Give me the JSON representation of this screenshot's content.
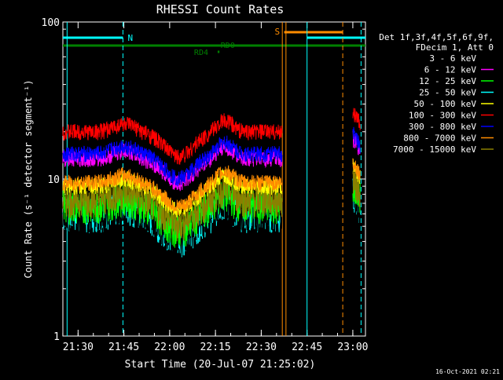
{
  "chart_data": {
    "type": "line",
    "title": "RHESSI Count Rates",
    "xlabel": "Start Time (20-Jul-07 21:25:02)",
    "ylabel": "Count Rate (s⁻¹ detector segment⁻¹)",
    "footer_date": "16-Oct-2021 02:21",
    "yscale": "log",
    "ylim": [
      1,
      100
    ],
    "xlim_minutes": [
      21.417,
      22.069
    ],
    "y_tick_labels": [
      "1",
      "10",
      "100"
    ],
    "x_ticks": [
      {
        "label": "21:30",
        "t": 21.5
      },
      {
        "label": "21:45",
        "t": 21.75
      },
      {
        "label": "22:00",
        "t": 22.0
      },
      {
        "label": "22:15",
        "t": 22.25
      },
      {
        "label": "22:30",
        "t": 22.5
      },
      {
        "label": "22:45",
        "t": 22.75
      },
      {
        "label": "23:00",
        "t": 23.0
      }
    ],
    "legend_header": [
      "Det 1f,3f,4f,5f,6f,9f,",
      "FDecim 1, Att 0"
    ],
    "series": [
      {
        "name": "3 - 6 keV",
        "color": "#000000",
        "base": 6.0
      },
      {
        "name": "6 - 12 keV",
        "color": "#ff00ff",
        "base": 13.5
      },
      {
        "name": "12 - 25 keV",
        "color": "#00ff00",
        "base": 6.8
      },
      {
        "name": "25 - 50 keV",
        "color": "#00ffff",
        "base": 6.0
      },
      {
        "name": "50 - 100 keV",
        "color": "#ffff00",
        "base": 9.0
      },
      {
        "name": "100 - 300 keV",
        "color": "#ff0000",
        "base": 20.0
      },
      {
        "name": "300 - 800 keV",
        "color": "#0000ff",
        "base": 14.5
      },
      {
        "name": "800 - 7000 keV",
        "color": "#ff8c00",
        "base": 9.5
      },
      {
        "name": "7000 - 15000 keV",
        "color": "#8b8000",
        "base": 7.5
      }
    ],
    "annotations": [
      {
        "label": "N",
        "color": "#00ffff"
      },
      {
        "label": "S",
        "color": "#ff8c00"
      },
      {
        "label": "RD0",
        "color": "#008000"
      },
      {
        "label": "RD4",
        "color": "#008000"
      }
    ],
    "vertical_lines": [
      {
        "t": 21.44,
        "color": "#00ffff",
        "style": "solid"
      },
      {
        "t": 21.745,
        "color": "#00ffff",
        "style": "dashed"
      },
      {
        "t": 22.615,
        "color": "#ff8c00",
        "style": "solid"
      },
      {
        "t": 22.635,
        "color": "#ff8c00",
        "style": "solid"
      },
      {
        "t": 22.75,
        "color": "#00ffff",
        "style": "solid"
      },
      {
        "t": 22.945,
        "color": "#ff8c00",
        "style": "dashed"
      },
      {
        "t": 23.045,
        "color": "#00ffff",
        "style": "dashed"
      }
    ]
  }
}
